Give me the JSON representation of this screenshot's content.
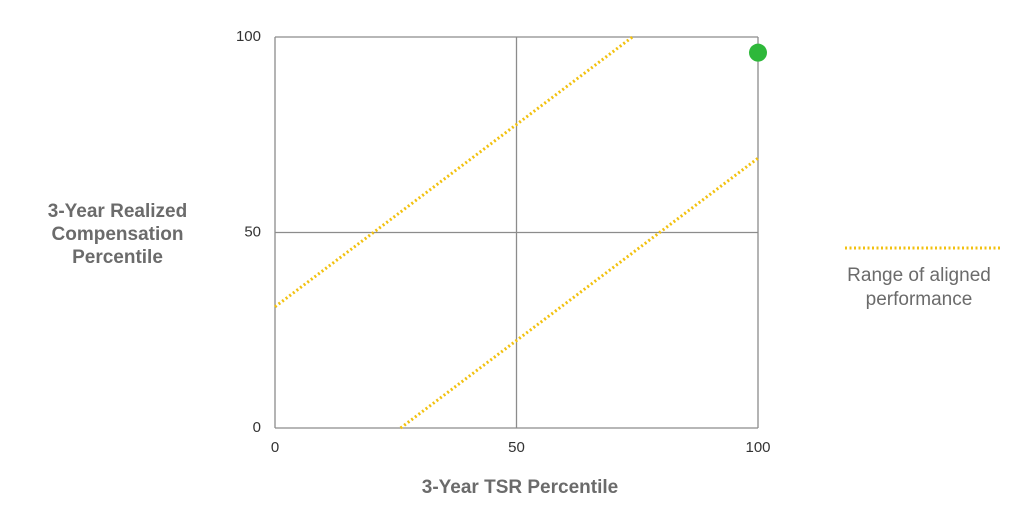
{
  "chart_data": {
    "type": "scatter",
    "xlabel": "3-Year TSR Percentile",
    "ylabel": "3-Year Realized Compensation Percentile",
    "xlim": [
      0,
      100
    ],
    "ylim": [
      0,
      100
    ],
    "xticks": [
      0,
      50,
      100
    ],
    "yticks": [
      0,
      50,
      100
    ],
    "grid": true,
    "legend": "right",
    "series": [
      {
        "name": "Range of aligned performance",
        "color": "#f2c10f",
        "style": "dotted",
        "x": [
          0,
          74
        ],
        "values": [
          31,
          100
        ]
      },
      {
        "color": "#f2c10f",
        "style": "dotted",
        "x": [
          26,
          100
        ],
        "values": [
          0,
          69
        ]
      },
      {
        "color": "#2eb83a",
        "style": "marker",
        "x": [
          100
        ],
        "values": [
          96
        ]
      }
    ]
  }
}
